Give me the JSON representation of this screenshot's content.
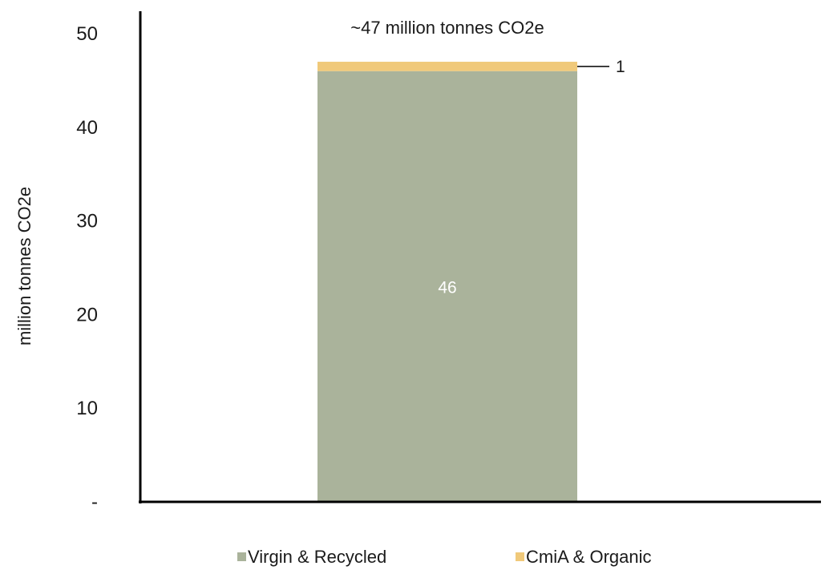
{
  "chart_data": {
    "type": "bar",
    "stacked": true,
    "categories": [
      ""
    ],
    "series": [
      {
        "name": "Virgin & Recycled",
        "values": [
          46
        ],
        "color": "#aab39b",
        "data_label": "46",
        "label_color": "#ffffff"
      },
      {
        "name": "CmiA & Organic",
        "values": [
          1
        ],
        "color": "#f0c97a",
        "data_label": "1",
        "label_color": "#1a1a1a"
      }
    ],
    "annotation": "~47 million tonnes CO2e",
    "xlabel": "",
    "ylabel": "million tonnes CO2e",
    "ylim": [
      0,
      50
    ],
    "yticks": [
      {
        "value": 0,
        "label": "-"
      },
      {
        "value": 10,
        "label": "10"
      },
      {
        "value": 20,
        "label": "20"
      },
      {
        "value": 30,
        "label": "30"
      },
      {
        "value": 40,
        "label": "40"
      },
      {
        "value": 50,
        "label": "50"
      }
    ],
    "grid": false,
    "legend": "bottom"
  }
}
